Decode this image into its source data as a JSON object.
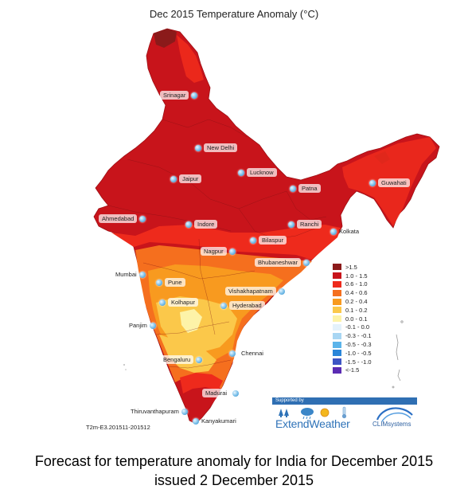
{
  "title": "Dec 2015 Temperature Anomaly (°C)",
  "model_code": "T2m-E3.201511-201512",
  "legend": {
    "items": [
      {
        "label": ">1.5",
        "color": "#8b1a1a"
      },
      {
        "label": "1.0 - 1.5",
        "color": "#c8141b"
      },
      {
        "label": "0.6 - 1.0",
        "color": "#ee2a1c"
      },
      {
        "label": "0.4 - 0.6",
        "color": "#f56f1e"
      },
      {
        "label": "0.2 - 0.4",
        "color": "#f89a1f"
      },
      {
        "label": "0.1 - 0.2",
        "color": "#fbc84a"
      },
      {
        "label": "0.0 - 0.1",
        "color": "#fdf3a8"
      },
      {
        "label": "-0.1 - 0.0",
        "color": "#e4f2fb"
      },
      {
        "label": "-0.3 - -0.1",
        "color": "#a8d6f3"
      },
      {
        "label": "-0.5 - -0.3",
        "color": "#5bb4ea"
      },
      {
        "label": "-1.0 - -0.5",
        "color": "#2a86d9"
      },
      {
        "label": "-1.5 - -1.0",
        "color": "#3d55c4"
      },
      {
        "label": "<-1.5",
        "color": "#5b2bb3"
      }
    ]
  },
  "cities": [
    {
      "name": "Srinagar"
    },
    {
      "name": "New Delhi"
    },
    {
      "name": "Lucknow"
    },
    {
      "name": "Jaipur"
    },
    {
      "name": "Patna"
    },
    {
      "name": "Guwahati"
    },
    {
      "name": "Ahmedabad"
    },
    {
      "name": "Indore"
    },
    {
      "name": "Ranchi"
    },
    {
      "name": "Kolkata"
    },
    {
      "name": "Bilaspur"
    },
    {
      "name": "Nagpur"
    },
    {
      "name": "Bhubaneshwar"
    },
    {
      "name": "Mumbai"
    },
    {
      "name": "Pune"
    },
    {
      "name": "Vishakhapatnam"
    },
    {
      "name": "Kolhapur"
    },
    {
      "name": "Hyderabad"
    },
    {
      "name": "Panjim"
    },
    {
      "name": "Chennai"
    },
    {
      "name": "Bengaluru"
    },
    {
      "name": "Madurai"
    },
    {
      "name": "Thiruvanthapuram"
    },
    {
      "name": "Kanyakumari"
    }
  ],
  "sponsors": {
    "supported_by": "Supported by",
    "extendweather": "ExtendWeather",
    "climsystems": "CLIMsystems"
  },
  "caption": {
    "line1": "Forecast for temperature anomaly for India for December 2015",
    "line2": "issued 2 December 2015"
  }
}
